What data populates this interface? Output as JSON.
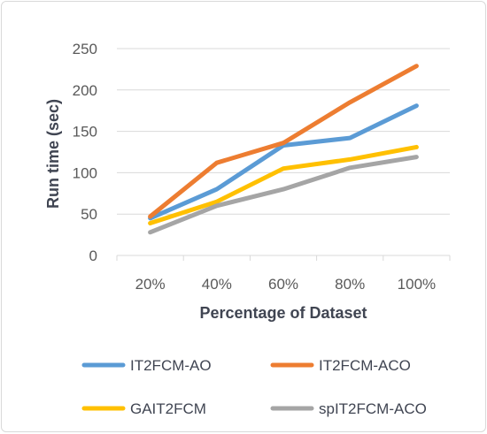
{
  "chart_data": {
    "type": "line",
    "categories": [
      "20%",
      "40%",
      "60%",
      "80%",
      "100%"
    ],
    "series": [
      {
        "name": "IT2FCM-AO",
        "color": "#5B9BD5",
        "values": [
          45,
          80,
          133,
          142,
          181
        ]
      },
      {
        "name": "IT2FCM-ACO",
        "color": "#ED7D31",
        "values": [
          47,
          112,
          136,
          185,
          229
        ]
      },
      {
        "name": "GAIT2FCM",
        "color": "#FFC000",
        "values": [
          39,
          65,
          105,
          116,
          131
        ]
      },
      {
        "name": "spIT2FCM-ACO",
        "color": "#A5A5A5",
        "values": [
          28,
          60,
          80,
          106,
          119
        ]
      }
    ],
    "xlabel": "Percentage of Dataset",
    "ylabel": "Run time (sec)",
    "ylim": [
      0,
      250
    ],
    "yticks": [
      0,
      50,
      100,
      150,
      200,
      250
    ],
    "grid": true,
    "legend_position": "bottom"
  }
}
